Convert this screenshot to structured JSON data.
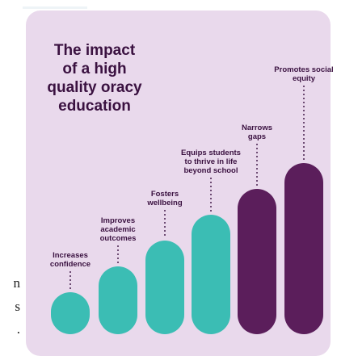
{
  "side_text": [
    "n",
    "s",
    "."
  ],
  "chart_data": {
    "type": "bar",
    "title": "The impact\nof a high\nquality oracy\neducation",
    "categories": [
      "Increases confidence",
      "Improves academic outcomes",
      "Fosters wellbeing",
      "Equips students to thrive in life beyond school",
      "Narrows gaps",
      "Promotes social equity"
    ],
    "label_lines": [
      [
        "Increases",
        "confidence"
      ],
      [
        "Improves",
        "academic",
        "outcomes"
      ],
      [
        "Fosters",
        "wellbeing"
      ],
      [
        "Equips students",
        "to thrive in life",
        "beyond school"
      ],
      [
        "Narrows",
        "gaps"
      ],
      [
        "Promotes social",
        "equity"
      ]
    ],
    "values": [
      1,
      2,
      3,
      4,
      5,
      6
    ],
    "ylim": [
      0,
      6
    ],
    "grid": false,
    "colors": [
      "#3bbdb4",
      "#3bbdb4",
      "#3bbdb4",
      "#3bbdb4",
      "#5b1e5b",
      "#5b1e5b"
    ],
    "text_color": "#3a1140",
    "background": "#e9d9ec"
  }
}
